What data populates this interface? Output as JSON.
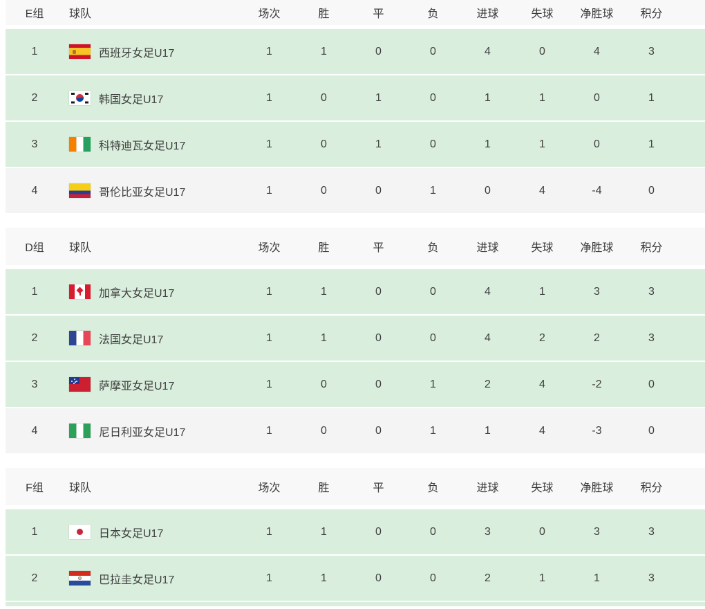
{
  "headers": {
    "team": "球队",
    "stats": [
      "场次",
      "胜",
      "平",
      "负",
      "进球",
      "失球",
      "净胜球",
      "积分"
    ]
  },
  "colors": {
    "qualified_row_bg": "#d9eedc",
    "fourth_place_row_bg": "#f4f4f4",
    "header_row_bg": "#f8f8f8",
    "text": "#3f3f3f"
  },
  "tables": [
    {
      "group": "E组",
      "rows": [
        {
          "rank": 1,
          "team": "西班牙女足U17",
          "flag_icon": "spain-flag-icon",
          "flag_style": "es",
          "played": 1,
          "win": 1,
          "draw": 0,
          "loss": 0,
          "goals_for": 4,
          "goals_against": 0,
          "goal_diff": 4,
          "points": 3,
          "qualified_highlight": true
        },
        {
          "rank": 2,
          "team": "韩国女足U17",
          "flag_icon": "south-korea-flag-icon",
          "flag_style": "kr",
          "played": 1,
          "win": 0,
          "draw": 1,
          "loss": 0,
          "goals_for": 1,
          "goals_against": 1,
          "goal_diff": 0,
          "points": 1,
          "qualified_highlight": true
        },
        {
          "rank": 3,
          "team": "科特迪瓦女足U17",
          "flag_icon": "ivory-coast-flag-icon",
          "flag_style": "ci",
          "played": 1,
          "win": 0,
          "draw": 1,
          "loss": 0,
          "goals_for": 1,
          "goals_against": 1,
          "goal_diff": 0,
          "points": 1,
          "qualified_highlight": true
        },
        {
          "rank": 4,
          "team": "哥伦比亚女足U17",
          "flag_icon": "colombia-flag-icon",
          "flag_style": "co",
          "played": 1,
          "win": 0,
          "draw": 0,
          "loss": 1,
          "goals_for": 0,
          "goals_against": 4,
          "goal_diff": -4,
          "points": 0,
          "qualified_highlight": false
        }
      ]
    },
    {
      "group": "D组",
      "rows": [
        {
          "rank": 1,
          "team": "加拿大女足U17",
          "flag_icon": "canada-flag-icon",
          "flag_style": "ca",
          "played": 1,
          "win": 1,
          "draw": 0,
          "loss": 0,
          "goals_for": 4,
          "goals_against": 1,
          "goal_diff": 3,
          "points": 3,
          "qualified_highlight": true
        },
        {
          "rank": 2,
          "team": "法国女足U17",
          "flag_icon": "france-flag-icon",
          "flag_style": "fr",
          "played": 1,
          "win": 1,
          "draw": 0,
          "loss": 0,
          "goals_for": 4,
          "goals_against": 2,
          "goal_diff": 2,
          "points": 3,
          "qualified_highlight": true
        },
        {
          "rank": 3,
          "team": "萨摩亚女足U17",
          "flag_icon": "samoa-flag-icon",
          "flag_style": "ws",
          "played": 1,
          "win": 0,
          "draw": 0,
          "loss": 1,
          "goals_for": 2,
          "goals_against": 4,
          "goal_diff": -2,
          "points": 0,
          "qualified_highlight": true
        },
        {
          "rank": 4,
          "team": "尼日利亚女足U17",
          "flag_icon": "nigeria-flag-icon",
          "flag_style": "ng",
          "played": 1,
          "win": 0,
          "draw": 0,
          "loss": 1,
          "goals_for": 1,
          "goals_against": 4,
          "goal_diff": -3,
          "points": 0,
          "qualified_highlight": false
        }
      ]
    },
    {
      "group": "F组",
      "partial_next_row": true,
      "rows": [
        {
          "rank": 1,
          "team": "日本女足U17",
          "flag_icon": "japan-flag-icon",
          "flag_style": "jp",
          "played": 1,
          "win": 1,
          "draw": 0,
          "loss": 0,
          "goals_for": 3,
          "goals_against": 0,
          "goal_diff": 3,
          "points": 3,
          "qualified_highlight": true
        },
        {
          "rank": 2,
          "team": "巴拉圭女足U17",
          "flag_icon": "paraguay-flag-icon",
          "flag_style": "py",
          "played": 1,
          "win": 1,
          "draw": 0,
          "loss": 0,
          "goals_for": 2,
          "goals_against": 1,
          "goal_diff": 1,
          "points": 3,
          "qualified_highlight": true
        }
      ]
    }
  ]
}
